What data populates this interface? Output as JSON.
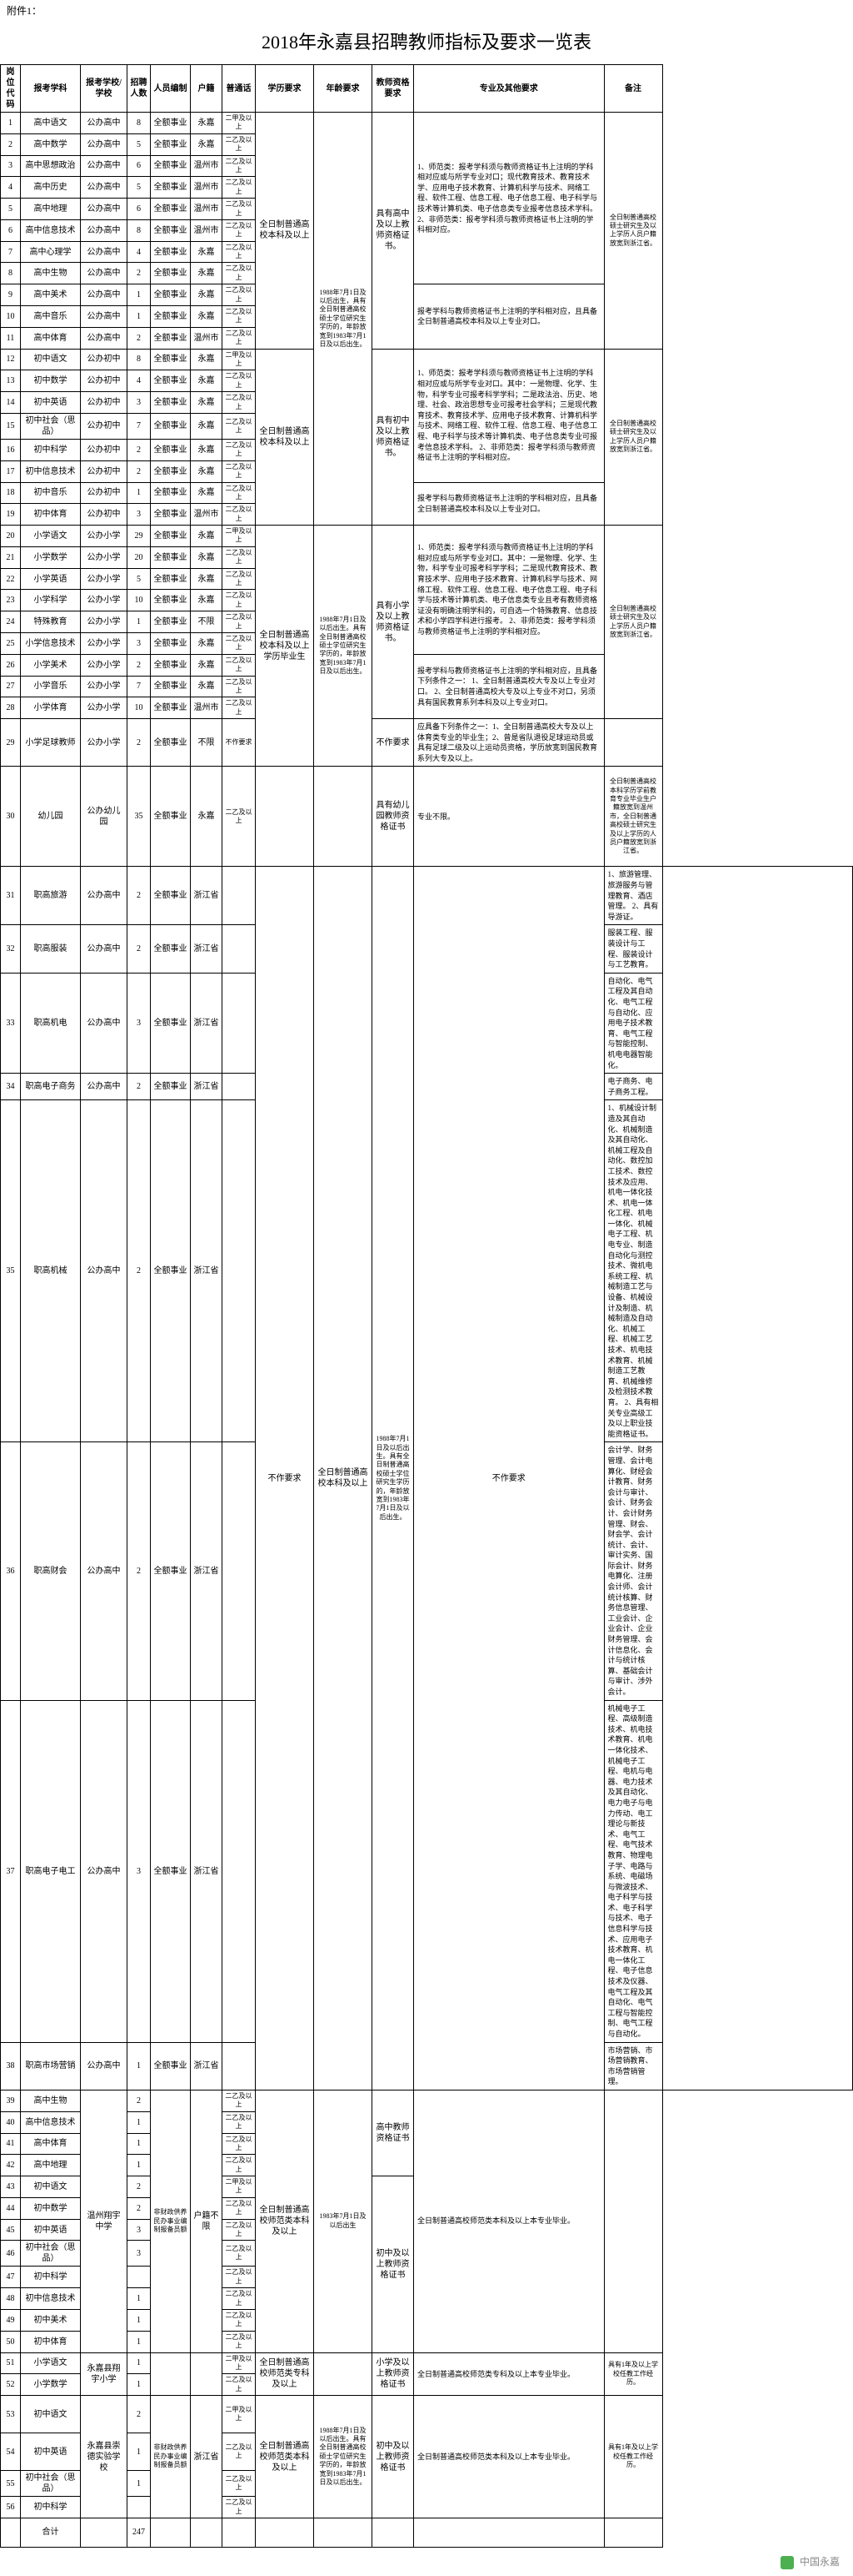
{
  "attachment_label": "附件1：",
  "title": "2018年永嘉县招聘教师指标及要求一览表",
  "columns": [
    "岗位代码",
    "报考学科",
    "报考学校/学校",
    "招聘人数",
    "人员编制",
    "户籍",
    "普通话",
    "学历要求",
    "年龄要求",
    "教师资格要求",
    "专业及其他要求",
    "备注"
  ],
  "pth_a": "二甲及以上",
  "pth_b": "二乙及以上",
  "staff_a": "全额事业",
  "staff_b": "非财政供养民办事业编制报备员额",
  "huji_yj": "永嘉",
  "huji_wz": "温州市",
  "huji_zj": "浙江省",
  "huji_bx": "不限",
  "huji_hbx": "户籍不限",
  "school_gzhong": "公办高中",
  "school_chuzhong": "公办初中",
  "school_xiaoxue": "公办小学",
  "school_youer": "公办幼儿园",
  "school_nanning": "温州翔宇中学",
  "school_yjxx": "永嘉县翔宇小学",
  "school_yjsy": "永嘉县崇德实验学校",
  "edu_bk": "全日制普通高校本科及以上",
  "edu_bkbys": "全日制普通高校本科及以上学历毕业生",
  "edu_sfbk": "全日制普通高校师范类本科及以上",
  "edu_sfzk": "全日制普通高校师范类专科及以上",
  "age_a": "1988年7月1日及以后出生，具有全日制普通高校硕士学位研究生学历的，年龄放宽到1983年7月1日及以后出生。",
  "age_b": "1988年7月1日及以后出生。具有全日制普通高校硕士学位研究生学历的，年龄放宽到1983年7月1日及以后出生。",
  "age_c": "1983年7月1日及以后出生",
  "age_d": "1988年7月1日及以后出生。具有全日制普通高校硕士学位研究生学历的，年龄放宽到1983年7月1日及以后出生。",
  "cert_gz": "具有高中及以上教师资格证书。",
  "cert_cz": "具有初中及以上教师资格证书。",
  "cert_xx": "具有小学及以上教师资格证书。",
  "cert_ye": "具有幼儿园教师资格证书",
  "cert_gzjs": "高中教师资格证书",
  "cert_czys": "初中及以上教师资格证书",
  "cert_xxys": "小学及以上教师资格证书",
  "req_nf": "不作要求",
  "req_r1": "1、师范类：报考学科须与教师资格证书上注明的学科相对应或与所学专业对口；现代教育技术、教育技术学、应用电子技术教育、计算机科学与技术、网络工程、软件工程、信息工程、电子信息工程、电子科学与技术等计算机类、电子信息类专业报考信息技术学科。\n2、非师范类：报考学科须与教师资格证书上注明的学科相对应。",
  "req_r2": "报考学科与教师资格证书上注明的学科相对应，且具备全日制普通高校本科及以上专业对口。",
  "req_r3": "1、师范类：报考学科须与教师资格证书上注明的学科相对应或与所学专业对口。其中：一是物理、化学、生物，科学专业可报考科学学科；二是政法治、历史、地理、社会、政治思想专业可报考社会学科；三是现代教育技术、教育技术学、应用电子技术教育、计算机科学与技术、网络工程、软件工程、信息工程、电子信息工程、电子科学与技术等计算机类、电子信息类专业可报考信息技术学科。\n2、非师范类：报考学科须与教师资格证书上注明的学科相对应。",
  "req_r4": "报考学科与教师资格证书上注明的学科相对应，且具备全日制普通高校本科及以上专业对口。",
  "req_r5": "1、师范类：报考学科须与教师资格证书上注明的学科相对应或与所学专业对口。其中：一是物理、化学、生物，科学专业可报考科学学科；二是现代教育技术、教育技术学、应用电子技术教育、计算机科学与技术、网络工程、软件工程、信息工程、电子信息工程、电子科学与技术等计算机类、电子信息类专业且考有教师资格证没有明确注明学科的，可自选一个特殊教育、信息技术和小学四学科进行报考。\n2、非师范类：报考学科须与教师资格证书上注明的学科相对应。",
  "req_r6": "报考学科与教师资格证书上注明的学科相对应，且具备下列条件之一：\n1、全日制普通高校大专及以上专业对口。\n2、全日制普通高校大专及以上专业不对口，另须具有国民教育系列本科及以上专业对口。",
  "req_r7": "应具备下列条件之一：1、全日制普通高校大专及以上体育类专业的毕业生；2、曾是省队退役足球运动员或具有足球二级及以上运动员资格，学历放宽到国民教育系列大专及以上。",
  "req_r8": "专业不限。",
  "req_z1": "1、旅游管理、旅游服务与管理教育、酒店管理。\n2、具有导游证。",
  "req_z2": "服装工程、服装设计与工程、服装设计与工艺教育。",
  "req_z3": "自动化、电气工程及其自动化、电气工程与自动化、应用电子技术教育、电气工程与智能控制、机电电器智能化。",
  "req_z4": "电子商务、电子商务工程。",
  "req_z5": "1、机械设计制造及其自动化、机械制造及其自动化、机械工程及自动化、数控加工技术、数控技术及应用、机电一体化技术、机电一体化工程、机电一体化、机械电子工程、机电专业、制造自动化与测控技术、微机电系统工程、机械制造工艺与设备、机械设计及制造、机械制造及自动化、机械工程、机械工艺技术、机电技术教育、机械制造工艺教育、机械维修及检测技术教育。\n2、具有相关专业高级工及以上职业技能资格证书。",
  "req_z6": "会计学、财务管理、会计电算化、财经会计教育、财务会计与审计、会计、财务会计、会计财务管理、财会、财会学、会计统计、会计、审计实务、国际会计、财务电算化、注册会计师、会计统计核算、财务信息管理、工业会计、企业会计、企业财务管理、会计信息化、会计与统计核算、基础会计与审计、涉外会计。",
  "req_z7": "机械电子工程、高级制造技术、机电技术教育、机电一体化技术、机械电子工程、电机与电器、电力技术及其自动化、电力电子与电力传动、电工理论与新技术、电气工程、电气技术教育、物理电子学、电路与系统、电磁场与微波技术、电子科学与技术、电子科学与技术、电子信息科学与技术、应用电子技术教育、机电一体化工程、电子信息技术及仪器、电气工程及其自动化、电气工程与智能控制、电气工程与自动化。",
  "req_z8": "市场营销、市场营销教育、市场营销管理。",
  "req_sf": "全日制普通高校师范类本科及以上本专业毕业。",
  "req_sfzk": "全日制普通高校师范类专科及以上本专业毕业。",
  "req_sfbk2": "全日制普通高校师范类本科及以上本专业毕业。",
  "note_a": "全日制普通高校硕士研究生及以上学历人员户籍放宽到浙江省。",
  "note_b": "全日制普通高校硕士研究生及以上学历人员户籍放宽到浙江省。",
  "note_c": "全日制普通高校硕士研究生及以上学历人员户籍放宽到浙江省。",
  "note_d": "全日制普通高校本科学历学前教育专业毕业生户籍放宽到温州市，全日制普通高校硕士研究生及以上学历的人员户籍放宽到浙江省。",
  "note_e": "具有1年及以上学校任教工作经历。",
  "rows_gz": [
    {
      "id": "1",
      "subj": "高中语文",
      "num": "8",
      "huji": "永嘉",
      "pth": "a"
    },
    {
      "id": "2",
      "subj": "高中数学",
      "num": "5",
      "huji": "永嘉",
      "pth": "b"
    },
    {
      "id": "3",
      "subj": "高中思想政治",
      "num": "6",
      "huji": "温州市",
      "pth": "b"
    },
    {
      "id": "4",
      "subj": "高中历史",
      "num": "5",
      "huji": "温州市",
      "pth": "b"
    },
    {
      "id": "5",
      "subj": "高中地理",
      "num": "6",
      "huji": "温州市",
      "pth": "b"
    },
    {
      "id": "6",
      "subj": "高中信息技术",
      "num": "8",
      "huji": "温州市",
      "pth": "b"
    },
    {
      "id": "7",
      "subj": "高中心理学",
      "num": "4",
      "huji": "永嘉",
      "pth": "b"
    },
    {
      "id": "8",
      "subj": "高中生物",
      "num": "2",
      "huji": "永嘉",
      "pth": "b"
    }
  ],
  "rows_gz2": [
    {
      "id": "9",
      "subj": "高中美术",
      "num": "1",
      "huji": "永嘉",
      "pth": "b"
    },
    {
      "id": "10",
      "subj": "高中音乐",
      "num": "1",
      "huji": "永嘉",
      "pth": "b"
    },
    {
      "id": "11",
      "subj": "高中体育",
      "num": "2",
      "huji": "温州市",
      "pth": "b"
    }
  ],
  "rows_cz1": [
    {
      "id": "12",
      "subj": "初中语文",
      "num": "8",
      "huji": "永嘉",
      "pth": "a"
    },
    {
      "id": "13",
      "subj": "初中数学",
      "num": "4",
      "huji": "永嘉",
      "pth": "b"
    },
    {
      "id": "14",
      "subj": "初中英语",
      "num": "3",
      "huji": "永嘉",
      "pth": "b"
    },
    {
      "id": "15",
      "subj": "初中社会（思品）",
      "num": "7",
      "huji": "永嘉",
      "pth": "b"
    },
    {
      "id": "16",
      "subj": "初中科学",
      "num": "2",
      "huji": "永嘉",
      "pth": "b"
    },
    {
      "id": "17",
      "subj": "初中信息技术",
      "num": "2",
      "huji": "永嘉",
      "pth": "b"
    }
  ],
  "rows_cz2": [
    {
      "id": "18",
      "subj": "初中音乐",
      "num": "1",
      "huji": "永嘉",
      "pth": "b"
    },
    {
      "id": "19",
      "subj": "初中体育",
      "num": "3",
      "huji": "温州市",
      "pth": "b"
    }
  ],
  "rows_xx1": [
    {
      "id": "20",
      "subj": "小学语文",
      "num": "29",
      "huji": "永嘉",
      "pth": "a"
    },
    {
      "id": "21",
      "subj": "小学数学",
      "num": "20",
      "huji": "永嘉",
      "pth": "b"
    },
    {
      "id": "22",
      "subj": "小学英语",
      "num": "5",
      "huji": "永嘉",
      "pth": "b"
    },
    {
      "id": "23",
      "subj": "小学科学",
      "num": "10",
      "huji": "永嘉",
      "pth": "b"
    },
    {
      "id": "24",
      "subj": "特殊教育",
      "num": "1",
      "huji": "不限",
      "pth": "b"
    },
    {
      "id": "25",
      "subj": "小学信息技术",
      "num": "3",
      "huji": "永嘉",
      "pth": "b"
    }
  ],
  "rows_xx2": [
    {
      "id": "26",
      "subj": "小学美术",
      "num": "2",
      "huji": "永嘉",
      "pth": "b"
    },
    {
      "id": "27",
      "subj": "小学音乐",
      "num": "7",
      "huji": "永嘉",
      "pth": "b"
    },
    {
      "id": "28",
      "subj": "小学体育",
      "num": "10",
      "huji": "温州市",
      "pth": "b"
    }
  ],
  "row_29": {
    "id": "29",
    "subj": "小学足球教师",
    "school": "公办小学",
    "num": "2",
    "huji": "不限",
    "pth": "不作要求"
  },
  "row_30": {
    "id": "30",
    "subj": "幼儿园",
    "school": "公办幼儿园",
    "num": "35",
    "huji": "永嘉",
    "pth": "b"
  },
  "rows_zhi": [
    {
      "id": "31",
      "subj": "职高旅游",
      "num": "2",
      "req": "req_z1"
    },
    {
      "id": "32",
      "subj": "职高服装",
      "num": "2",
      "req": "req_z2"
    },
    {
      "id": "33",
      "subj": "职高机电",
      "num": "3",
      "req": "req_z3"
    },
    {
      "id": "34",
      "subj": "职高电子商务",
      "num": "2",
      "req": "req_z4"
    },
    {
      "id": "35",
      "subj": "职高机械",
      "num": "2",
      "req": "req_z5",
      "big": true
    },
    {
      "id": "36",
      "subj": "职高财会",
      "num": "2",
      "req": "req_z6",
      "big": true
    },
    {
      "id": "37",
      "subj": "职高电子电工",
      "num": "3",
      "req": "req_z7",
      "big": true
    },
    {
      "id": "38",
      "subj": "职高市场营销",
      "num": "1",
      "req": "req_z8"
    }
  ],
  "rows_wz1": [
    {
      "id": "39",
      "subj": "高中生物",
      "num": "2",
      "pth": "b"
    },
    {
      "id": "40",
      "subj": "高中信息技术",
      "num": "1",
      "pth": "b"
    },
    {
      "id": "41",
      "subj": "高中体育",
      "num": "1",
      "pth": "b"
    },
    {
      "id": "42",
      "subj": "高中地理",
      "num": "1",
      "pth": "b"
    }
  ],
  "rows_wz2": [
    {
      "id": "43",
      "subj": "初中语文",
      "num": "2",
      "pth": "a"
    },
    {
      "id": "44",
      "subj": "初中数学",
      "num": "2",
      "pth": "b"
    },
    {
      "id": "45",
      "subj": "初中英语",
      "num": "3",
      "pth": "b"
    },
    {
      "id": "46",
      "subj": "初中社会（思品）",
      "num": "3",
      "pth": "b"
    },
    {
      "id": "47",
      "subj": "初中科学",
      "num": "",
      "pth": "b"
    },
    {
      "id": "48",
      "subj": "初中信息技术",
      "num": "1",
      "pth": "b"
    },
    {
      "id": "49",
      "subj": "初中美术",
      "num": "1",
      "pth": "b"
    },
    {
      "id": "50",
      "subj": "初中体育",
      "num": "1",
      "pth": "b"
    }
  ],
  "rows_yj1": [
    {
      "id": "51",
      "subj": "小学语文",
      "num": "1",
      "pth": "a"
    },
    {
      "id": "52",
      "subj": "小学数学",
      "num": "1",
      "pth": "b"
    }
  ],
  "rows_yj2": [
    {
      "id": "53",
      "subj": "初中语文",
      "num": "2",
      "pth": "a"
    },
    {
      "id": "54",
      "subj": "初中英语",
      "num": "1",
      "pth": "b"
    },
    {
      "id": "55",
      "subj": "初中社会（思品）",
      "num": "1",
      "pth": "b"
    },
    {
      "id": "56",
      "subj": "初中科学",
      "num": "",
      "pth": "b"
    }
  ],
  "total_label": "合计",
  "total_num": "247",
  "footer": "中国永嘉"
}
